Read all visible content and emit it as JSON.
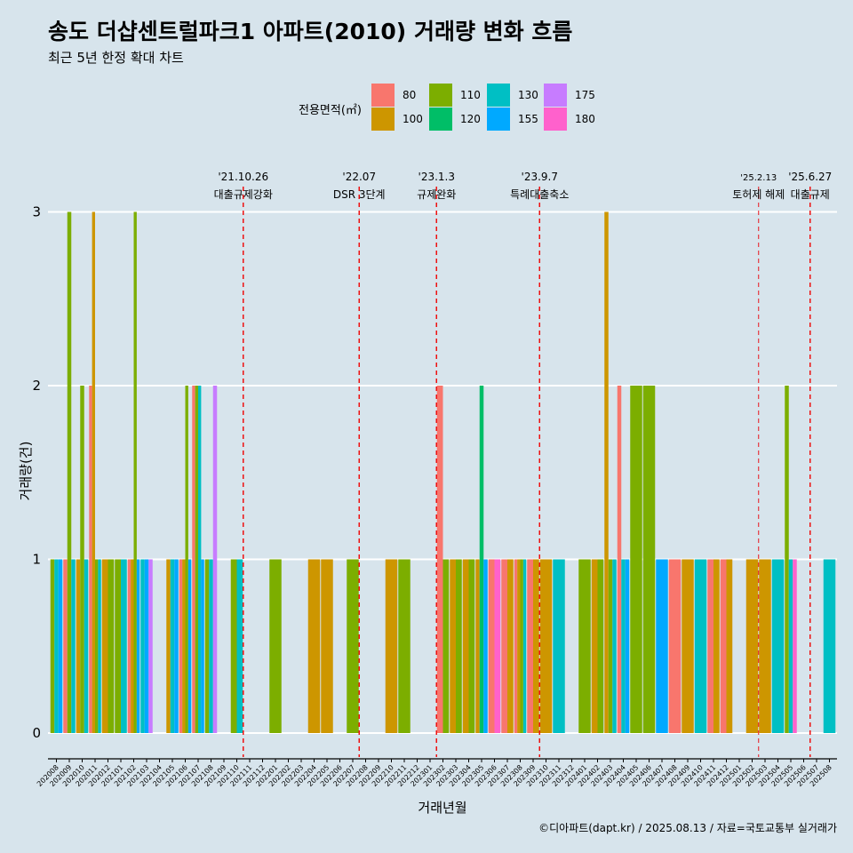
{
  "chart_data": {
    "type": "bar",
    "title": "송도 더샵센트럴파크1 아파트(2010) 거래량 변화 흐름",
    "subtitle": "최근 5년 한정 확대 차트",
    "xlabel": "거래년월",
    "ylabel": "거래량(건)",
    "ylim": [
      0,
      3
    ],
    "yticks": [
      "0",
      "1",
      "2",
      "3"
    ],
    "legend_title": "전용면적(㎡)",
    "legend_position": "top",
    "caption": "©디아파트(dapt.kr) / 2025.08.13 / 자료=국토교통부 실거래가",
    "colors": {
      "80": "#F8766D",
      "100": "#CD9600",
      "110": "#7CAE00",
      "120": "#00BE67",
      "130": "#00BFC4",
      "155": "#00A9FF",
      "175": "#C77CFF",
      "180": "#FF61CC"
    },
    "legend": [
      "80",
      "100",
      "110",
      "120",
      "130",
      "155",
      "175",
      "180"
    ],
    "categories": [
      "202008",
      "202009",
      "202010",
      "202011",
      "202012",
      "202101",
      "202102",
      "202103",
      "202104",
      "202105",
      "202106",
      "202107",
      "202108",
      "202109",
      "202110",
      "202111",
      "202112",
      "202201",
      "202202",
      "202203",
      "202204",
      "202205",
      "202206",
      "202207",
      "202208",
      "202209",
      "202210",
      "202211",
      "202212",
      "202301",
      "202302",
      "202303",
      "202304",
      "202305",
      "202306",
      "202307",
      "202308",
      "202309",
      "202310",
      "202311",
      "202312",
      "202401",
      "202402",
      "202403",
      "202404",
      "202405",
      "202406",
      "202407",
      "202408",
      "202409",
      "202410",
      "202411",
      "202412",
      "202501",
      "202502",
      "202503",
      "202504",
      "202505",
      "202506",
      "202507",
      "202508"
    ],
    "bars": [
      {
        "month": "202008",
        "sizes": [
          [
            "110",
            1
          ],
          [
            "130",
            1
          ],
          [
            "155",
            1
          ]
        ]
      },
      {
        "month": "202009",
        "sizes": [
          [
            "80",
            1
          ],
          [
            "110",
            3
          ],
          [
            "130",
            1
          ]
        ]
      },
      {
        "month": "202010",
        "sizes": [
          [
            "100",
            1
          ],
          [
            "110",
            2
          ],
          [
            "130",
            1
          ]
        ]
      },
      {
        "month": "202011",
        "sizes": [
          [
            "80",
            2
          ],
          [
            "100",
            3
          ],
          [
            "110",
            1
          ],
          [
            "130",
            1
          ]
        ]
      },
      {
        "month": "202012",
        "sizes": [
          [
            "100",
            1
          ],
          [
            "110",
            1
          ]
        ]
      },
      {
        "month": "202101",
        "sizes": [
          [
            "110",
            1
          ],
          [
            "130",
            1
          ]
        ]
      },
      {
        "month": "202102",
        "sizes": [
          [
            "80",
            1
          ],
          [
            "100",
            1
          ],
          [
            "110",
            3
          ],
          [
            "155",
            1
          ]
        ]
      },
      {
        "month": "202103",
        "sizes": [
          [
            "130",
            1
          ],
          [
            "155",
            1
          ],
          [
            "175",
            1
          ]
        ]
      },
      {
        "month": "202105",
        "sizes": [
          [
            "100",
            1
          ],
          [
            "130",
            1
          ],
          [
            "155",
            1
          ]
        ]
      },
      {
        "month": "202106",
        "sizes": [
          [
            "80",
            1
          ],
          [
            "100",
            1
          ],
          [
            "110",
            2
          ],
          [
            "155",
            1
          ]
        ]
      },
      {
        "month": "202107",
        "sizes": [
          [
            "80",
            2
          ],
          [
            "110",
            2
          ],
          [
            "130",
            2
          ],
          [
            "155",
            1
          ]
        ]
      },
      {
        "month": "202108",
        "sizes": [
          [
            "110",
            1
          ],
          [
            "130",
            1
          ],
          [
            "175",
            2
          ]
        ]
      },
      {
        "month": "202110",
        "sizes": [
          [
            "110",
            1
          ],
          [
            "130",
            1
          ]
        ]
      },
      {
        "month": "202201",
        "sizes": [
          [
            "110",
            1
          ]
        ]
      },
      {
        "month": "202204",
        "sizes": [
          [
            "100",
            1
          ]
        ]
      },
      {
        "month": "202205",
        "sizes": [
          [
            "100",
            1
          ]
        ]
      },
      {
        "month": "202207",
        "sizes": [
          [
            "110",
            1
          ]
        ]
      },
      {
        "month": "202210",
        "sizes": [
          [
            "100",
            1
          ]
        ]
      },
      {
        "month": "202211",
        "sizes": [
          [
            "110",
            1
          ]
        ]
      },
      {
        "month": "202302",
        "sizes": [
          [
            "80",
            2
          ],
          [
            "110",
            1
          ]
        ]
      },
      {
        "month": "202303",
        "sizes": [
          [
            "100",
            1
          ],
          [
            "110",
            1
          ]
        ]
      },
      {
        "month": "202304",
        "sizes": [
          [
            "100",
            1
          ],
          [
            "110",
            1
          ]
        ]
      },
      {
        "month": "202305",
        "sizes": [
          [
            "100",
            1
          ],
          [
            "120",
            2
          ],
          [
            "155",
            1
          ]
        ]
      },
      {
        "month": "202306",
        "sizes": [
          [
            "80",
            1
          ],
          [
            "180",
            1
          ]
        ]
      },
      {
        "month": "202307",
        "sizes": [
          [
            "80",
            1
          ],
          [
            "100",
            1
          ]
        ]
      },
      {
        "month": "202308",
        "sizes": [
          [
            "80",
            1
          ],
          [
            "100",
            1
          ],
          [
            "110",
            1
          ],
          [
            "130",
            1
          ]
        ]
      },
      {
        "month": "202309",
        "sizes": [
          [
            "80",
            1
          ],
          [
            "100",
            1
          ]
        ]
      },
      {
        "month": "202310",
        "sizes": [
          [
            "100",
            1
          ]
        ]
      },
      {
        "month": "202311",
        "sizes": [
          [
            "130",
            1
          ]
        ]
      },
      {
        "month": "202401",
        "sizes": [
          [
            "110",
            1
          ]
        ]
      },
      {
        "month": "202402",
        "sizes": [
          [
            "100",
            1
          ],
          [
            "110",
            1
          ]
        ]
      },
      {
        "month": "202403",
        "sizes": [
          [
            "100",
            3
          ],
          [
            "110",
            1
          ],
          [
            "130",
            1
          ]
        ]
      },
      {
        "month": "202404",
        "sizes": [
          [
            "80",
            2
          ],
          [
            "130",
            1
          ],
          [
            "155",
            1
          ]
        ]
      },
      {
        "month": "202405",
        "sizes": [
          [
            "110",
            2
          ]
        ]
      },
      {
        "month": "202406",
        "sizes": [
          [
            "110",
            2
          ]
        ]
      },
      {
        "month": "202407",
        "sizes": [
          [
            "155",
            1
          ]
        ]
      },
      {
        "month": "202408",
        "sizes": [
          [
            "80",
            1
          ]
        ]
      },
      {
        "month": "202409",
        "sizes": [
          [
            "100",
            1
          ]
        ]
      },
      {
        "month": "202410",
        "sizes": [
          [
            "130",
            1
          ]
        ]
      },
      {
        "month": "202411",
        "sizes": [
          [
            "80",
            1
          ],
          [
            "100",
            1
          ]
        ]
      },
      {
        "month": "202412",
        "sizes": [
          [
            "80",
            1
          ],
          [
            "100",
            1
          ]
        ]
      },
      {
        "month": "202502",
        "sizes": [
          [
            "100",
            1
          ]
        ]
      },
      {
        "month": "202503",
        "sizes": [
          [
            "100",
            1
          ]
        ]
      },
      {
        "month": "202504",
        "sizes": [
          [
            "130",
            1
          ]
        ]
      },
      {
        "month": "202505",
        "sizes": [
          [
            "110",
            2
          ],
          [
            "130",
            1
          ],
          [
            "180",
            1
          ]
        ]
      },
      {
        "month": "202508",
        "sizes": [
          [
            "130",
            1
          ]
        ]
      }
    ],
    "annotations": [
      {
        "at": "202110",
        "line1": "'21.10.26",
        "line2": "대출규제강화",
        "small": false
      },
      {
        "at": "202207",
        "line1": "'22.07",
        "line2": "DSR 3단계",
        "small": false
      },
      {
        "at": "202301",
        "line1": "'23.1.3",
        "line2": "규제완화",
        "small": false
      },
      {
        "at": "202309",
        "line1": "'23.9.7",
        "line2": "특례대출축소",
        "small": false
      },
      {
        "at": "202502",
        "line1": "'25.2.13",
        "line2": "토허제 해제",
        "small": true
      },
      {
        "at": "202506",
        "line1": "'25.6.27",
        "line2": "대출규제",
        "small": false
      }
    ]
  }
}
